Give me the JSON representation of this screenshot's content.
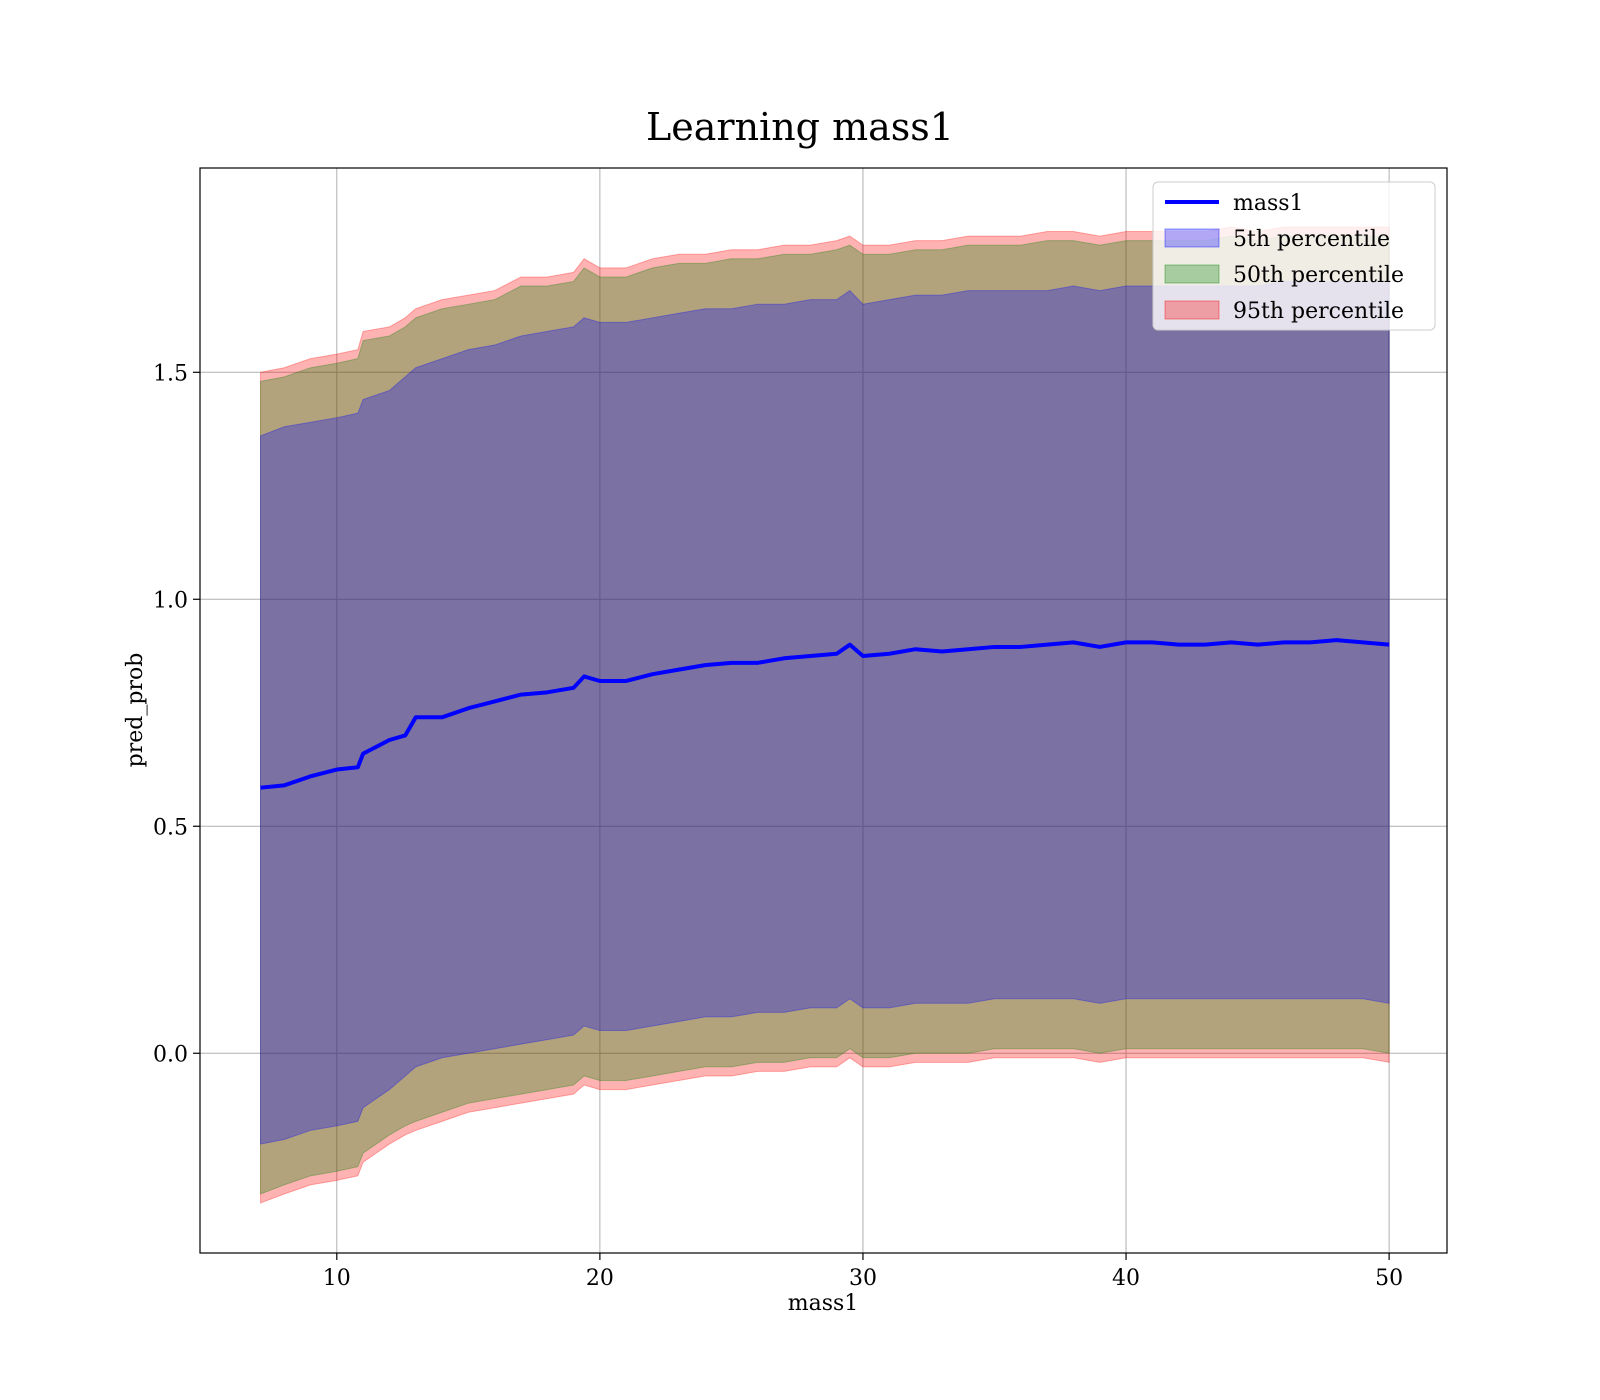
{
  "chart_data": {
    "type": "line",
    "title": "Learning mass1",
    "xlabel": "mass1",
    "ylabel": "pred_prob",
    "xlim": [
      4.8,
      52.2
    ],
    "ylim": [
      -0.44,
      1.95
    ],
    "xticks": [
      10,
      20,
      30,
      40,
      50
    ],
    "xtick_labels": [
      "10",
      "20",
      "30",
      "40",
      "50"
    ],
    "yticks": [
      0.0,
      0.5,
      1.0,
      1.5
    ],
    "ytick_labels": [
      "0.0",
      "0.5",
      "1.0",
      "1.5"
    ],
    "grid": true,
    "legend_position": "upper right",
    "colors": {
      "line": "#0000ff",
      "band_5": "#0000ff",
      "band_50": "#008000",
      "band_95": "#ff0000"
    },
    "x": [
      7.1,
      8,
      9,
      10,
      10.8,
      11,
      12,
      12.6,
      13,
      14,
      15,
      16,
      17,
      18,
      19,
      19.4,
      20,
      21,
      22,
      23,
      24,
      25,
      26,
      27,
      28,
      29,
      29.5,
      30,
      31,
      32,
      33,
      34,
      35,
      36,
      37,
      38,
      39,
      40,
      41,
      42,
      43,
      44,
      45,
      46,
      47,
      48,
      49,
      50
    ],
    "series": [
      {
        "name": "mass1",
        "values": [
          0.585,
          0.59,
          0.61,
          0.625,
          0.63,
          0.66,
          0.69,
          0.7,
          0.74,
          0.74,
          0.76,
          0.775,
          0.79,
          0.795,
          0.805,
          0.83,
          0.82,
          0.82,
          0.835,
          0.845,
          0.855,
          0.86,
          0.86,
          0.87,
          0.875,
          0.88,
          0.9,
          0.875,
          0.88,
          0.89,
          0.885,
          0.89,
          0.895,
          0.895,
          0.9,
          0.905,
          0.895,
          0.905,
          0.905,
          0.9,
          0.9,
          0.905,
          0.9,
          0.905,
          0.905,
          0.91,
          0.905,
          0.9
        ]
      }
    ],
    "bands": [
      {
        "name": "95th percentile",
        "upper": [
          1.5,
          1.51,
          1.53,
          1.54,
          1.55,
          1.59,
          1.6,
          1.62,
          1.64,
          1.66,
          1.67,
          1.68,
          1.71,
          1.71,
          1.72,
          1.75,
          1.73,
          1.73,
          1.75,
          1.76,
          1.76,
          1.77,
          1.77,
          1.78,
          1.78,
          1.79,
          1.8,
          1.78,
          1.78,
          1.79,
          1.79,
          1.8,
          1.8,
          1.8,
          1.81,
          1.81,
          1.8,
          1.81,
          1.81,
          1.81,
          1.81,
          1.82,
          1.81,
          1.82,
          1.82,
          1.82,
          1.82,
          1.82
        ],
        "lower": [
          -0.33,
          -0.31,
          -0.29,
          -0.28,
          -0.27,
          -0.24,
          -0.2,
          -0.18,
          -0.17,
          -0.15,
          -0.13,
          -0.12,
          -0.11,
          -0.1,
          -0.09,
          -0.07,
          -0.08,
          -0.08,
          -0.07,
          -0.06,
          -0.05,
          -0.05,
          -0.04,
          -0.04,
          -0.03,
          -0.03,
          -0.01,
          -0.03,
          -0.03,
          -0.02,
          -0.02,
          -0.02,
          -0.01,
          -0.01,
          -0.01,
          -0.01,
          -0.02,
          -0.01,
          -0.01,
          -0.01,
          -0.01,
          -0.01,
          -0.01,
          -0.01,
          -0.01,
          -0.01,
          -0.01,
          -0.02
        ]
      },
      {
        "name": "50th percentile",
        "upper": [
          1.48,
          1.49,
          1.51,
          1.52,
          1.53,
          1.57,
          1.58,
          1.6,
          1.62,
          1.64,
          1.65,
          1.66,
          1.69,
          1.69,
          1.7,
          1.73,
          1.71,
          1.71,
          1.73,
          1.74,
          1.74,
          1.75,
          1.75,
          1.76,
          1.76,
          1.77,
          1.78,
          1.76,
          1.76,
          1.77,
          1.77,
          1.78,
          1.78,
          1.78,
          1.79,
          1.79,
          1.78,
          1.79,
          1.79,
          1.79,
          1.79,
          1.8,
          1.79,
          1.8,
          1.8,
          1.8,
          1.8,
          1.8
        ],
        "lower": [
          -0.31,
          -0.29,
          -0.27,
          -0.26,
          -0.25,
          -0.22,
          -0.18,
          -0.16,
          -0.15,
          -0.13,
          -0.11,
          -0.1,
          -0.09,
          -0.08,
          -0.07,
          -0.05,
          -0.06,
          -0.06,
          -0.05,
          -0.04,
          -0.03,
          -0.03,
          -0.02,
          -0.02,
          -0.01,
          -0.01,
          0.01,
          -0.01,
          -0.01,
          0.0,
          0.0,
          0.0,
          0.01,
          0.01,
          0.01,
          0.01,
          0.0,
          0.01,
          0.01,
          0.01,
          0.01,
          0.01,
          0.01,
          0.01,
          0.01,
          0.01,
          0.01,
          0.0
        ]
      },
      {
        "name": "5th percentile",
        "upper": [
          1.36,
          1.38,
          1.39,
          1.4,
          1.41,
          1.44,
          1.46,
          1.49,
          1.51,
          1.53,
          1.55,
          1.56,
          1.58,
          1.59,
          1.6,
          1.62,
          1.61,
          1.61,
          1.62,
          1.63,
          1.64,
          1.64,
          1.65,
          1.65,
          1.66,
          1.66,
          1.68,
          1.65,
          1.66,
          1.67,
          1.67,
          1.68,
          1.68,
          1.68,
          1.68,
          1.69,
          1.68,
          1.69,
          1.69,
          1.69,
          1.69,
          1.69,
          1.69,
          1.7,
          1.7,
          1.7,
          1.7,
          1.7
        ],
        "lower": [
          -0.2,
          -0.19,
          -0.17,
          -0.16,
          -0.15,
          -0.12,
          -0.08,
          -0.05,
          -0.03,
          -0.01,
          0.0,
          0.01,
          0.02,
          0.03,
          0.04,
          0.06,
          0.05,
          0.05,
          0.06,
          0.07,
          0.08,
          0.08,
          0.09,
          0.09,
          0.1,
          0.1,
          0.12,
          0.1,
          0.1,
          0.11,
          0.11,
          0.11,
          0.12,
          0.12,
          0.12,
          0.12,
          0.11,
          0.12,
          0.12,
          0.12,
          0.12,
          0.12,
          0.12,
          0.12,
          0.12,
          0.12,
          0.12,
          0.11
        ]
      }
    ],
    "legend": [
      {
        "label": "mass1",
        "kind": "line",
        "color": "#0000ff"
      },
      {
        "label": "5th percentile",
        "kind": "patch",
        "color": "#0000ff"
      },
      {
        "label": "50th percentile",
        "kind": "patch",
        "color": "#008000"
      },
      {
        "label": "95th percentile",
        "kind": "patch",
        "color": "#ff0000"
      }
    ]
  }
}
